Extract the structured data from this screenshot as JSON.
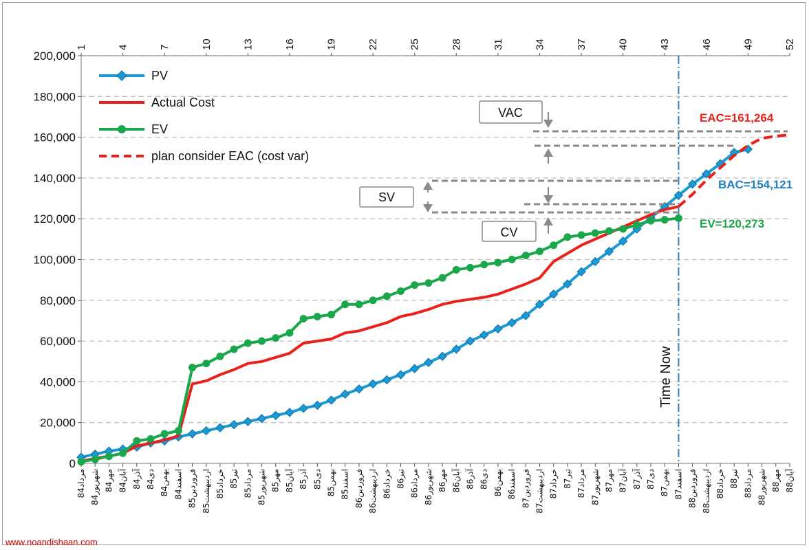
{
  "chart_data": {
    "type": "line",
    "y_ticks": [
      "0",
      "20,000",
      "40,000",
      "60,000",
      "80,000",
      "100,000",
      "120,000",
      "140,000",
      "160,000",
      "180,000",
      "200,000"
    ],
    "ylim": [
      0,
      200000
    ],
    "grid": true,
    "legend_position": "top-left",
    "x_top_ticks": [
      "1",
      "4",
      "7",
      "10",
      "13",
      "16",
      "19",
      "22",
      "25",
      "28",
      "31",
      "34",
      "37",
      "40",
      "43",
      "46",
      "49",
      "52"
    ],
    "x_bottom_labels": [
      "مرداد84",
      "شهریور84",
      "مهر84",
      "آبان84",
      "آذر84",
      "دی84",
      "بهمن84",
      "اسفند84",
      "فروردین85",
      "اردیبهشت85",
      "خرداد85",
      "تیر85",
      "مرداد85",
      "شهریور85",
      "مهر85",
      "آبان85",
      "آذر85",
      "دی85",
      "بهمن85",
      "اسفند85",
      "فروردین86",
      "اردیبهشت86",
      "خرداد86",
      "تیر86",
      "مرداد86",
      "شهریور86",
      "مهر86",
      "آبان86",
      "آذر86",
      "دی86",
      "بهمن86",
      "اسفند86",
      "فروردین87",
      "اردیبهشت87",
      "خرداد87",
      "تیر87",
      "مرداد87",
      "شهریور87",
      "مهر87",
      "آبان87",
      "آذر87",
      "دی87",
      "بهمن87",
      "اسفند87",
      "فروردین88",
      "اردیبهشت88",
      "خرداد88",
      "تیر88",
      "مرداد88",
      "شهریور88",
      "مهر88",
      "آبان88"
    ],
    "series": [
      {
        "name": "PV",
        "color": "#1b9ad6",
        "style": "solid-diamond",
        "start_x": 1,
        "values": [
          3000,
          4500,
          6000,
          7000,
          8000,
          10000,
          11000,
          13000,
          14500,
          16000,
          17500,
          19000,
          20500,
          22000,
          23500,
          25000,
          27000,
          28500,
          31000,
          34000,
          36500,
          39000,
          41000,
          43500,
          46500,
          49500,
          52500,
          56000,
          60000,
          63000,
          66000,
          69000,
          72500,
          78000,
          83000,
          88000,
          94000,
          99000,
          104000,
          109000,
          115000,
          120500,
          126000,
          131500,
          137000,
          142000,
          147000,
          152500,
          154121
        ]
      },
      {
        "name": "Actual Cost",
        "color": "#e8211b",
        "style": "solid",
        "start_x": 1,
        "values": [
          1000,
          2500,
          3500,
          5000,
          8500,
          10000,
          11500,
          13500,
          39000,
          40500,
          43500,
          46000,
          49000,
          50000,
          52000,
          54000,
          59000,
          60000,
          61000,
          64000,
          65000,
          67000,
          69000,
          72000,
          73500,
          75500,
          78000,
          79500,
          80500,
          81500,
          83000,
          85500,
          88000,
          91000,
          99000,
          103000,
          107000,
          110000,
          113000,
          116000,
          119000,
          122000,
          124500,
          126000
        ]
      },
      {
        "name": "EV",
        "color": "#1aa64a",
        "style": "solid-circle",
        "start_x": 1,
        "values": [
          800,
          2000,
          3500,
          5000,
          11000,
          12000,
          14500,
          16000,
          47000,
          49000,
          52500,
          56000,
          59000,
          60000,
          61500,
          64000,
          71000,
          72000,
          73000,
          78000,
          78000,
          80000,
          82000,
          84500,
          87500,
          88500,
          91000,
          95000,
          96000,
          97500,
          98500,
          100000,
          102000,
          104000,
          107000,
          111000,
          112000,
          113000,
          114000,
          115000,
          117000,
          119000,
          119500,
          120273
        ]
      },
      {
        "name": "plan consider EAC (cost var)",
        "color": "#e8211b",
        "style": "dashed",
        "start_x": 44,
        "values": [
          126000,
          132000,
          139000,
          145000,
          151000,
          156000,
          159500,
          160500,
          161264
        ]
      }
    ]
  },
  "legend": {
    "pv": "PV",
    "ac": "Actual Cost",
    "ev": "EV",
    "eac": "plan consider EAC (cost var)"
  },
  "annotations": {
    "vac": "VAC",
    "sv": "SV",
    "cv": "CV",
    "eac_value": "EAC=161,264",
    "bac_value": "BAC=154,121",
    "ev_value": "EV=120,273",
    "time_now": "Time Now"
  },
  "colors": {
    "pv": "#1b9ad6",
    "ac": "#e8211b",
    "ev": "#1aa64a",
    "grid": "#bfbfbf",
    "time_now_line": "#3b7fb5"
  },
  "watermark": "www.noandishaan.com"
}
